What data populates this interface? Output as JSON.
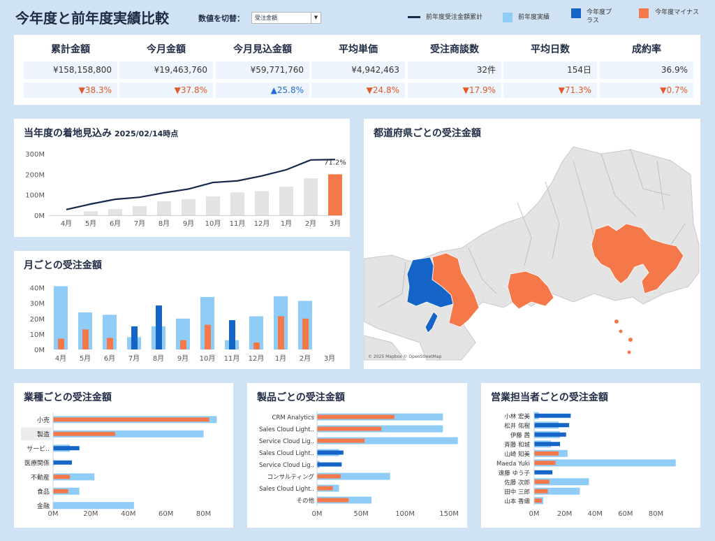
{
  "header": {
    "title": "今年度と前年度実績比較",
    "switch_label": "数値を切替：",
    "switch_value": "受注金額",
    "legend": [
      {
        "label": "前年度受注金額累計",
        "color": "#15284b",
        "shape": "line"
      },
      {
        "label": "前年度実績",
        "color": "#8fcdf6",
        "shape": "square"
      },
      {
        "label": "今年度プラス",
        "color": "#1565c8",
        "shape": "square"
      },
      {
        "label": "今年度マイナス",
        "color": "#f5784a",
        "shape": "square"
      }
    ]
  },
  "kpis": [
    {
      "label": "累計金額",
      "value": "¥158,158,800",
      "delta": "▼38.3%",
      "dir": "down"
    },
    {
      "label": "今月金額",
      "value": "¥19,463,760",
      "delta": "▼37.8%",
      "dir": "down"
    },
    {
      "label": "今月見込金額",
      "value": "¥59,771,760",
      "delta": "▲25.8%",
      "dir": "up"
    },
    {
      "label": "平均単価",
      "value": "¥4,942,463",
      "delta": "▼24.8%",
      "dir": "down"
    },
    {
      "label": "受注商談数",
      "value": "32件",
      "delta": "▼17.9%",
      "dir": "down"
    },
    {
      "label": "平均日数",
      "value": "154日",
      "delta": "▼71.3%",
      "dir": "down"
    },
    {
      "label": "成約率",
      "value": "36.9%",
      "delta": "▼0.7%",
      "dir": "down"
    }
  ],
  "forecast": {
    "title": "当年度の着地見込み",
    "date": "2025/02/14時点",
    "annotation": "71.2%"
  },
  "monthly": {
    "title": "月ごとの受注金額"
  },
  "map": {
    "title": "都道府県ごとの受注金額",
    "attribution": "© 2025 Mapbox © OpenStreetMap"
  },
  "industry": {
    "title": "業種ごとの受注金額"
  },
  "product": {
    "title": "製品ごとの受注金額"
  },
  "rep": {
    "title": "営業担当者ごとの受注金額"
  },
  "chart_data": [
    {
      "id": "forecast",
      "type": "bar",
      "categories": [
        "4月",
        "5月",
        "6月",
        "7月",
        "8月",
        "9月",
        "10月",
        "11月",
        "12月",
        "1月",
        "2月",
        "3月"
      ],
      "series": [
        {
          "values": [
            null,
            20,
            30,
            45,
            68,
            78,
            92,
            112,
            118,
            140,
            180,
            200
          ]
        },
        {
          "name": "前年度受注金額累計",
          "type": "line",
          "values": [
            28,
            55,
            78,
            88,
            110,
            128,
            160,
            168,
            192,
            222,
            270,
            272
          ]
        }
      ],
      "highlight": {
        "category": "3月",
        "label": "71.2%"
      },
      "yticks": [
        "0M",
        "100M",
        "200M",
        "300M"
      ],
      "ylim": [
        0,
        300
      ]
    },
    {
      "id": "monthly",
      "type": "bar",
      "categories": [
        "4月",
        "5月",
        "6月",
        "7月",
        "8月",
        "9月",
        "10月",
        "11月",
        "12月",
        "1月",
        "2月",
        "3月"
      ],
      "series": [
        {
          "name": "前年度実績",
          "values": [
            41,
            24,
            22.5,
            8,
            15,
            20,
            34,
            6,
            21.5,
            34.5,
            31.5,
            null
          ]
        },
        {
          "values": [
            7,
            13,
            7.5,
            15,
            28.5,
            6,
            16,
            19,
            4.5,
            21.5,
            20,
            null
          ]
        }
      ],
      "current_direction": [
        "minus",
        "minus",
        "minus",
        "plus",
        "plus",
        "minus",
        "minus",
        "plus",
        "minus",
        "minus",
        "minus",
        null
      ],
      "yticks": [
        "0M",
        "10M",
        "20M",
        "30M",
        "40M"
      ],
      "ylim": [
        0,
        43
      ]
    },
    {
      "id": "industry",
      "type": "bar",
      "orientation": "horizontal",
      "categories": [
        "小売",
        "製造",
        "サービ..",
        "医療関係",
        "不動産",
        "食品",
        "金融"
      ],
      "series": [
        {
          "name": "前年度実績",
          "values": [
            87,
            80,
            9,
            0.5,
            22,
            14,
            43
          ]
        },
        {
          "values": [
            83,
            33,
            14,
            10,
            9,
            8,
            0
          ]
        }
      ],
      "current_direction": [
        "minus",
        "minus",
        "plus",
        "plus",
        "minus",
        "minus",
        "minus"
      ],
      "xticks": [
        "0M",
        "20M",
        "40M",
        "60M",
        "80M"
      ],
      "xlim": [
        0,
        95
      ]
    },
    {
      "id": "product",
      "type": "bar",
      "orientation": "horizontal",
      "categories": [
        "CRM Analytics",
        "Sales Cloud Light..",
        "Service Cloud Lig..",
        "Sales Cloud Light..",
        "Service Cloud Lig..",
        "コンサルティング",
        "Sales Cloud Light..",
        "その他"
      ],
      "series": [
        {
          "name": "前年度実績",
          "values": [
            143,
            143,
            160,
            25,
            3,
            83,
            25,
            62
          ]
        },
        {
          "values": [
            88,
            73,
            54,
            30,
            28,
            27,
            18,
            36
          ]
        }
      ],
      "current_direction": [
        "minus",
        "minus",
        "minus",
        "plus",
        "plus",
        "minus",
        "minus",
        "minus"
      ],
      "xticks": [
        "0M",
        "50M",
        "100M",
        "150M"
      ],
      "xlim": [
        0,
        165
      ]
    },
    {
      "id": "rep",
      "type": "bar",
      "orientation": "horizontal",
      "categories": [
        "小林 宏美",
        "松井 佑樹",
        "伊藤 茜",
        "斉藤 和城",
        "山崎 知美",
        "Maeda Yuki",
        "遠藤 ゆう子",
        "佐藤 次郎",
        "田中 三郎",
        "山本 香織"
      ],
      "series": [
        {
          "name": "前年度実績",
          "values": [
            3,
            16,
            17,
            11,
            22,
            93,
            0,
            36,
            30,
            6
          ]
        },
        {
          "values": [
            24,
            23,
            21,
            17,
            16,
            14,
            12,
            10,
            9,
            5
          ]
        }
      ],
      "current_direction": [
        "plus",
        "plus",
        "plus",
        "plus",
        "minus",
        "minus",
        "plus",
        "minus",
        "minus",
        "minus"
      ],
      "xticks": [
        "0M",
        "20M",
        "40M",
        "60M",
        "80M"
      ],
      "xlim": [
        0,
        100
      ]
    }
  ]
}
